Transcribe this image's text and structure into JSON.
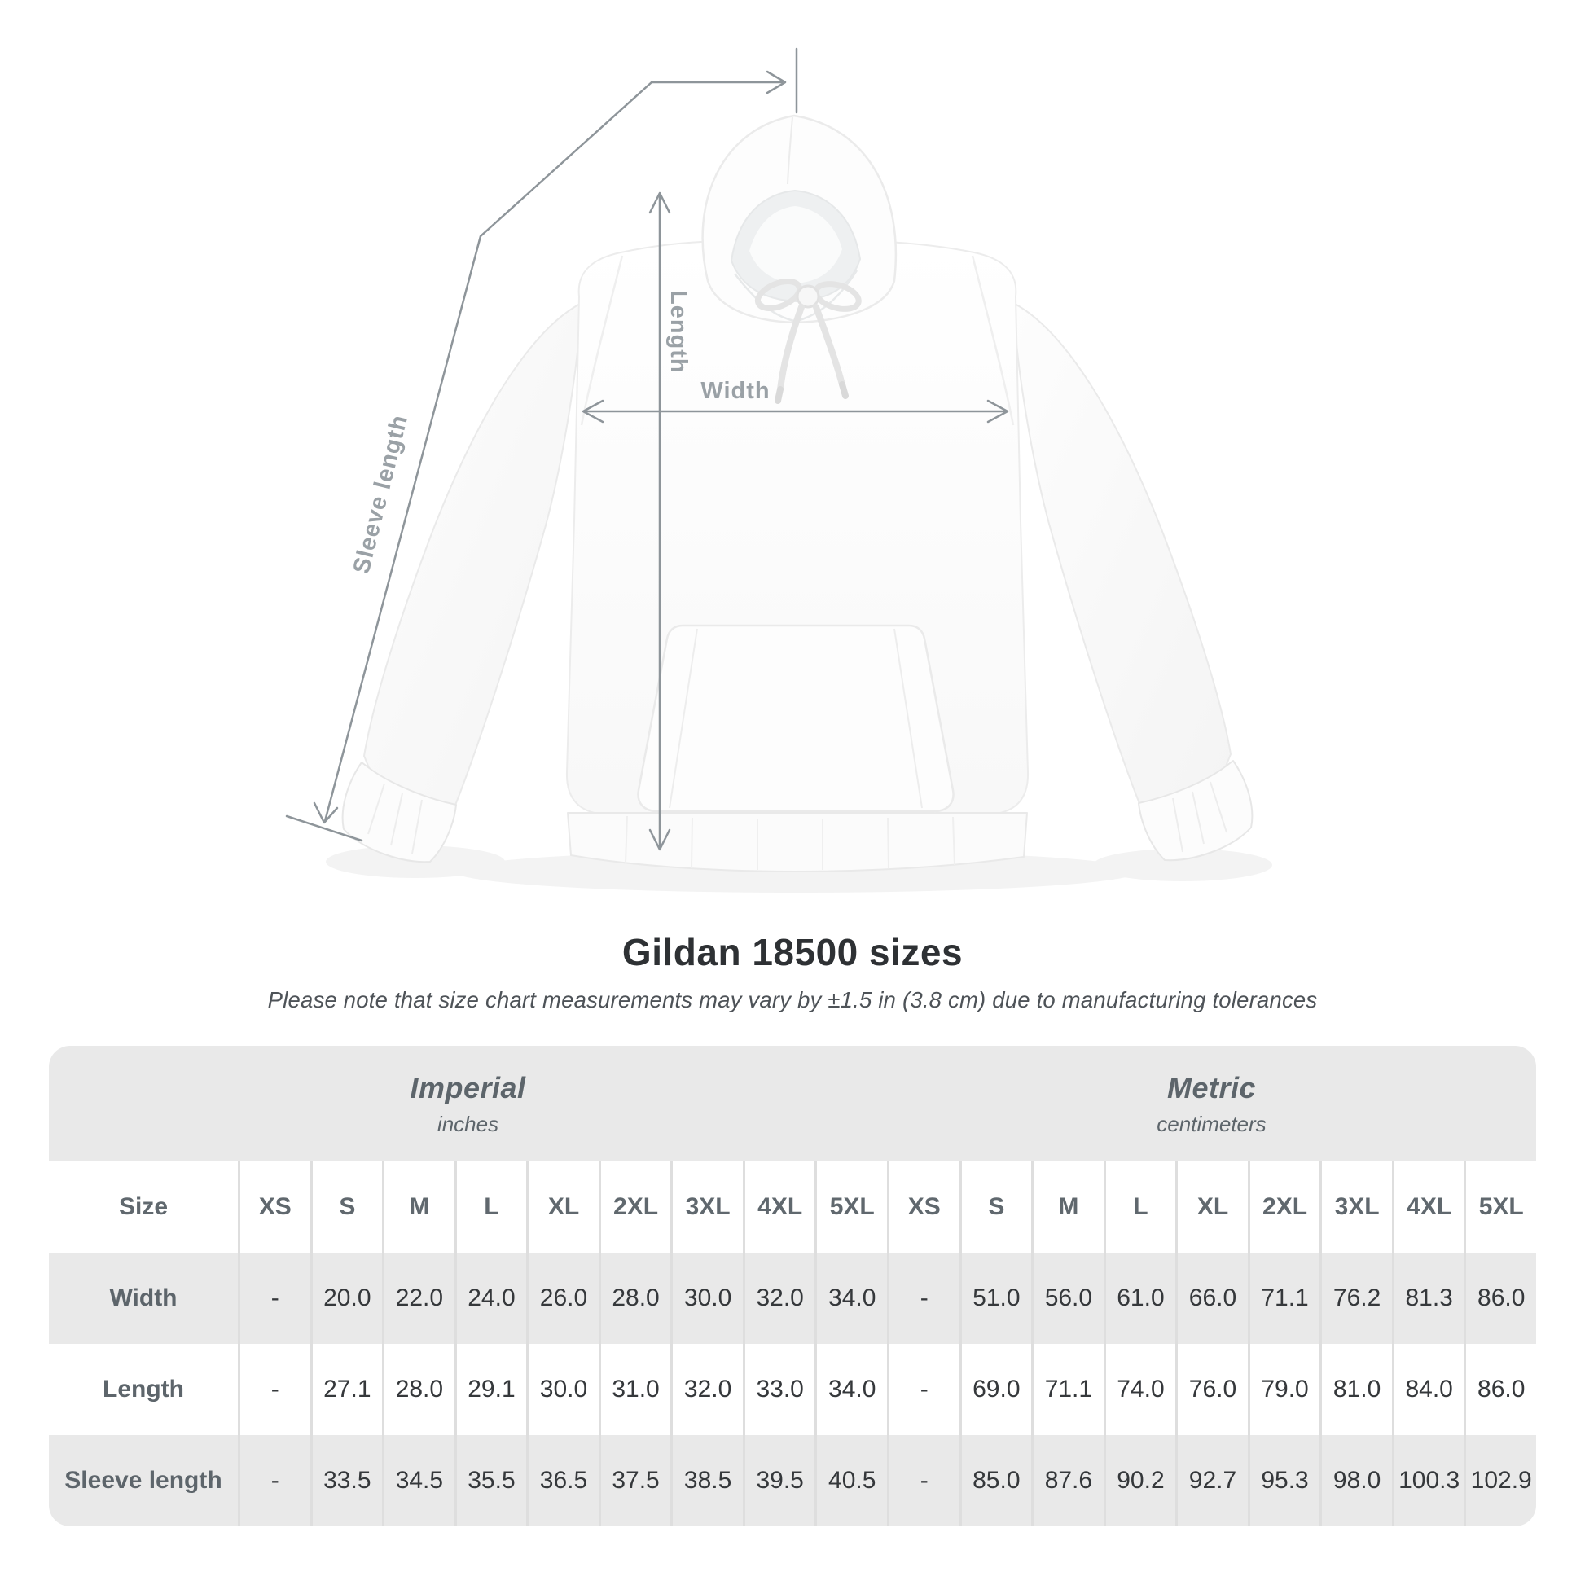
{
  "diagram": {
    "length_label": "Length",
    "width_label": "Width",
    "sleeve_label": "Sleeve length"
  },
  "colors": {
    "annotation_line": "#8e959a",
    "annotation_text": "#9aa1a6",
    "table_band_gray": "#e9e9e9",
    "title_text": "#2e3134",
    "table_label_text": "#5d656b",
    "table_value_text": "#35383b"
  },
  "chart_data": {
    "type": "table",
    "title": "Gildan 18500 sizes",
    "subtitle": "Please note that size chart measurements may vary by ±1.5 in (3.8 cm) due to manufacturing tolerances",
    "size_column_header": "Size",
    "sizes": [
      "XS",
      "S",
      "M",
      "L",
      "XL",
      "2XL",
      "3XL",
      "4XL",
      "5XL"
    ],
    "column_groups": [
      {
        "label": "Imperial",
        "unit": "inches"
      },
      {
        "label": "Metric",
        "unit": "centimeters"
      }
    ],
    "rows": [
      {
        "label": "Width",
        "imperial": [
          "-",
          "20.0",
          "22.0",
          "24.0",
          "26.0",
          "28.0",
          "30.0",
          "32.0",
          "34.0"
        ],
        "metric": [
          "-",
          "51.0",
          "56.0",
          "61.0",
          "66.0",
          "71.1",
          "76.2",
          "81.3",
          "86.0"
        ]
      },
      {
        "label": "Length",
        "imperial": [
          "-",
          "27.1",
          "28.0",
          "29.1",
          "30.0",
          "31.0",
          "32.0",
          "33.0",
          "34.0"
        ],
        "metric": [
          "-",
          "69.0",
          "71.1",
          "74.0",
          "76.0",
          "79.0",
          "81.0",
          "84.0",
          "86.0"
        ]
      },
      {
        "label": "Sleeve length",
        "imperial": [
          "-",
          "33.5",
          "34.5",
          "35.5",
          "36.5",
          "37.5",
          "38.5",
          "39.5",
          "40.5"
        ],
        "metric": [
          "-",
          "85.0",
          "87.6",
          "90.2",
          "92.7",
          "95.3",
          "98.0",
          "100.3",
          "102.9"
        ]
      }
    ]
  }
}
